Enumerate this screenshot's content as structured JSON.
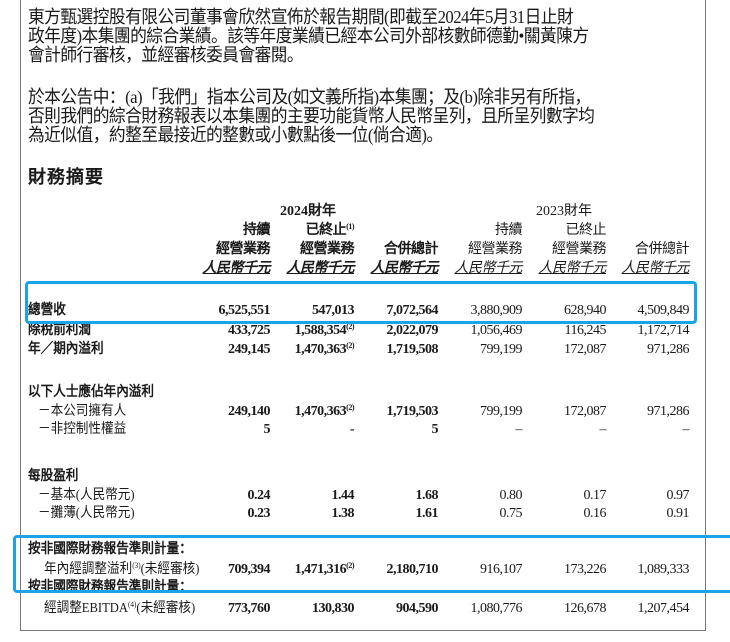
{
  "intro": {
    "para1": [
      "東方甄選控股有限公司董事會欣然宣佈於報告期間(即截至2024年5月31日止財",
      "政年度)本集團的綜合業績。該等年度業績已經本公司外部核數師德勤•關黃陳方",
      "會計師行審核，並經審核委員會審閱。"
    ],
    "para2": [
      "於本公告中：(a)「我們」指本公司及(如文義所指)本集團；及(b)除非另有所指，",
      "否則我們的綜合財務報表以本集團的主要功能貨幣人民幣呈列，且所呈列數字均",
      "為近似值，約整至最接近的整數或小數點後一位(倘合適)。"
    ]
  },
  "section_title": "財務摘要",
  "table": {
    "year_headers": [
      "2024財年",
      "2023財年"
    ],
    "columns": [
      {
        "l1": "持續",
        "l2": "經營業務",
        "unit": "人民幣千元"
      },
      {
        "l1": "已終止",
        "sup": "(1)",
        "l2": "經營業務",
        "unit": "人民幣千元"
      },
      {
        "l1": "",
        "l2": "合併總計",
        "unit": "人民幣千元"
      },
      {
        "l1": "持續",
        "l2": "經營業務",
        "unit": "人民幣千元"
      },
      {
        "l1": "已終止",
        "l2": "經營業務",
        "unit": "人民幣千元"
      },
      {
        "l1": "",
        "l2": "合併總計",
        "unit": "人民幣千元"
      }
    ],
    "rows": [
      {
        "label": "總營收",
        "values": [
          "6,525,551",
          "547,013",
          "7,072,564",
          "3,880,909",
          "628,940",
          "4,509,849"
        ],
        "sups": [
          "",
          "",
          "",
          "",
          "",
          ""
        ]
      },
      {
        "label": "除稅前利潤",
        "values": [
          "433,725",
          "1,588,354",
          "2,022,079",
          "1,056,469",
          "116,245",
          "1,172,714"
        ],
        "sups": [
          "",
          "(2)",
          "",
          "",
          "",
          ""
        ]
      },
      {
        "label": "年／期內溢利",
        "values": [
          "249,145",
          "1,470,363",
          "1,719,508",
          "799,199",
          "172,087",
          "971,286"
        ],
        "sups": [
          "",
          "(2)",
          "",
          "",
          "",
          ""
        ]
      },
      {
        "label": "以下人士應佔年內溢利",
        "values": [
          "",
          "",
          "",
          "",
          "",
          ""
        ],
        "sups": [
          "",
          "",
          "",
          "",
          "",
          ""
        ]
      },
      {
        "label": "－本公司擁有人",
        "values": [
          "249,140",
          "1,470,363",
          "1,719,503",
          "799,199",
          "172,087",
          "971,286"
        ],
        "sups": [
          "",
          "(2)",
          "",
          "",
          "",
          ""
        ]
      },
      {
        "label": "－非控制性權益",
        "values": [
          "5",
          "-",
          "5",
          "–",
          "–",
          "–"
        ],
        "sups": [
          "",
          "",
          "",
          "",
          "",
          ""
        ]
      },
      {
        "label": "每股盈利",
        "values": [
          "",
          "",
          "",
          "",
          "",
          ""
        ],
        "sups": [
          "",
          "",
          "",
          "",
          "",
          ""
        ]
      },
      {
        "label": "－基本(人民幣元)",
        "values": [
          "0.24",
          "1.44",
          "1.68",
          "0.80",
          "0.17",
          "0.97"
        ],
        "sups": [
          "",
          "",
          "",
          "",
          "",
          ""
        ]
      },
      {
        "label": "－攤薄(人民幣元)",
        "values": [
          "0.23",
          "1.38",
          "1.61",
          "0.75",
          "0.16",
          "0.91"
        ],
        "sups": [
          "",
          "",
          "",
          "",
          "",
          ""
        ]
      },
      {
        "label": "按非國際財務報告準則計量：",
        "values": [
          "",
          "",
          "",
          "",
          "",
          ""
        ],
        "sups": [
          "",
          "",
          "",
          "",
          "",
          ""
        ]
      },
      {
        "label": "年內經調整溢利",
        "label_sup": "(3)",
        "label_suffix": "(未經審核)",
        "values": [
          "709,394",
          "1,471,316",
          "2,180,710",
          "916,107",
          "173,226",
          "1,089,333"
        ],
        "sups": [
          "",
          "(2)",
          "",
          "",
          "",
          ""
        ]
      },
      {
        "label": "按非國際財務報告準則計量：",
        "values": [
          "",
          "",
          "",
          "",
          "",
          ""
        ],
        "sups": [
          "",
          "",
          "",
          "",
          "",
          ""
        ]
      },
      {
        "label": "經調整EBITDA",
        "label_sup": "(4)",
        "label_suffix": "(未經審核)",
        "values": [
          "773,760",
          "130,830",
          "904,590",
          "1,080,776",
          "126,678",
          "1,207,454"
        ],
        "sups": [
          "",
          "",
          "",
          "",
          "",
          ""
        ]
      }
    ]
  },
  "highlight_color": "#1aa3e8"
}
